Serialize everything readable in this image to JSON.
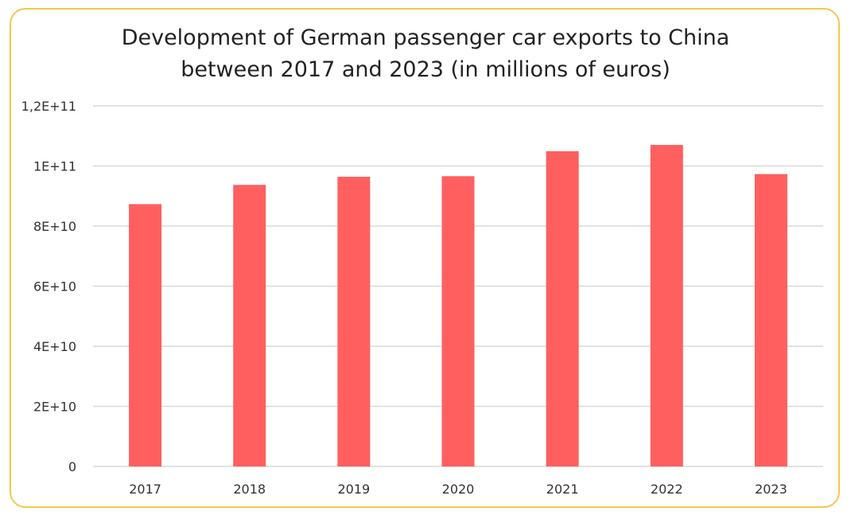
{
  "chart_data": {
    "type": "bar",
    "title_lines": [
      "Development of German passenger car exports to China",
      "between 2017 and 2023 (in millions of euros)"
    ],
    "categories": [
      "2017",
      "2018",
      "2019",
      "2020",
      "2021",
      "2022",
      "2023"
    ],
    "values": [
      87300000000,
      93700000000,
      96400000000,
      96600000000,
      104900000000,
      107000000000,
      97300000000
    ],
    "ylim": [
      0,
      120000000000
    ],
    "yticks": [
      0,
      20000000000,
      40000000000,
      60000000000,
      80000000000,
      100000000000,
      120000000000
    ],
    "ytick_labels": [
      "0",
      "2E+10",
      "4E+10",
      "6E+10",
      "8E+10",
      "1E+11",
      "1,2E+11"
    ],
    "xlabel": "",
    "ylabel": "",
    "grid": true,
    "bar_color": "#ff5f5f",
    "border_color": "#f2c94c"
  }
}
